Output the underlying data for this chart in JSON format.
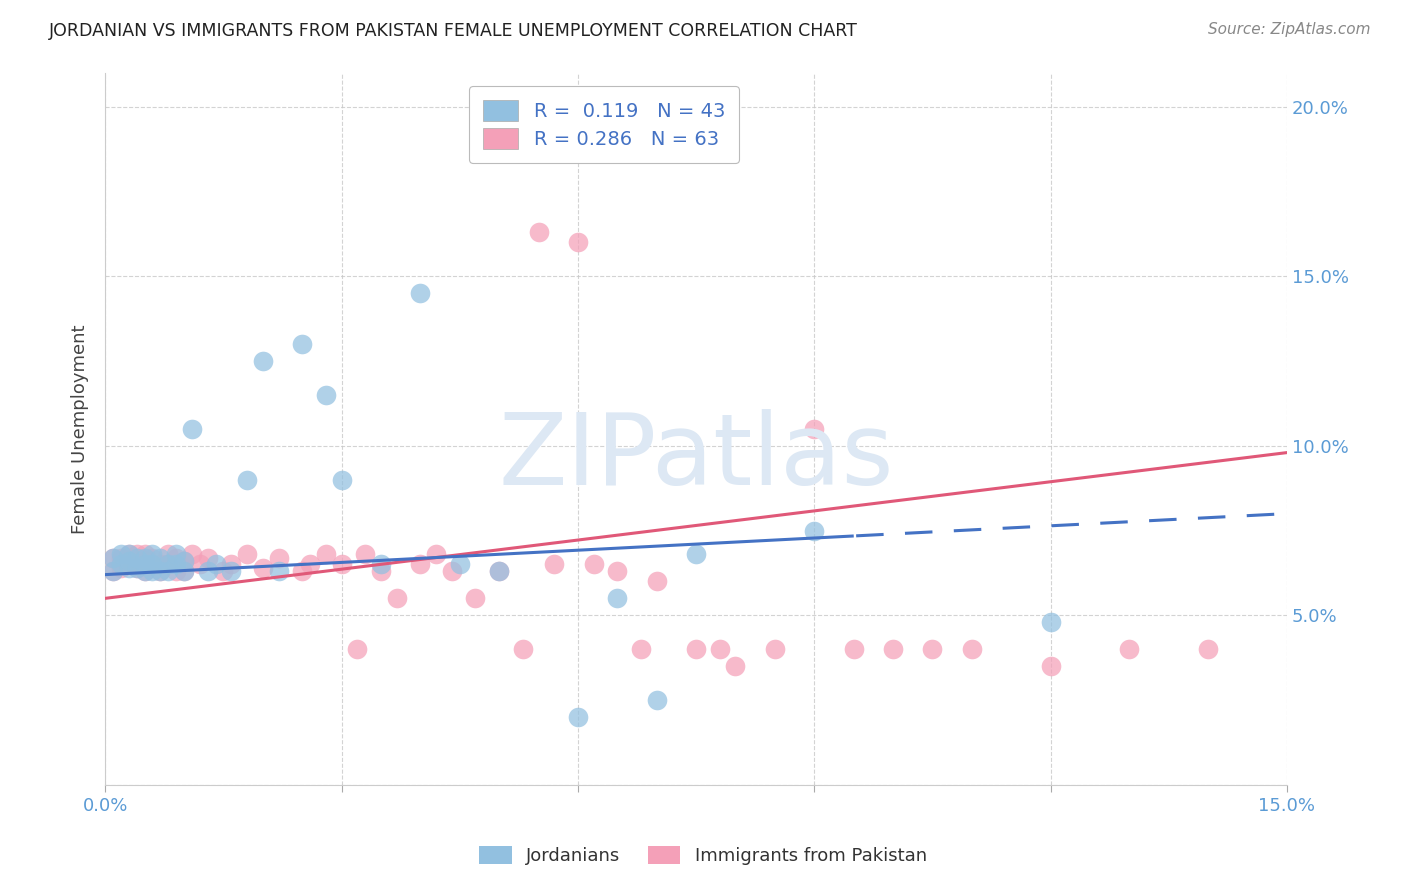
{
  "title": "JORDANIAN VS IMMIGRANTS FROM PAKISTAN FEMALE UNEMPLOYMENT CORRELATION CHART",
  "source": "Source: ZipAtlas.com",
  "ylabel": "Female Unemployment",
  "x_min": 0.0,
  "x_max": 0.15,
  "y_min": 0.0,
  "y_max": 0.21,
  "axis_color": "#5b9bd5",
  "grid_color": "#c8c8c8",
  "background_color": "#ffffff",
  "watermark_color": "#dde8f4",
  "jordanians_color": "#92c0e0",
  "pakistan_color": "#f4a0b8",
  "jordan_line_color": "#4472c4",
  "pakistan_line_color": "#e05878",
  "jordan_R": 0.119,
  "jordan_N": 43,
  "pakistan_R": 0.286,
  "pakistan_N": 63,
  "legend_label_jordan": "Jordanians",
  "legend_label_pakistan": "Immigrants from Pakistan",
  "jordan_solid_cutoff": 0.095,
  "jordan_line_y0": 0.062,
  "jordan_line_y1": 0.08,
  "pakistan_line_y0": 0.055,
  "pakistan_line_y1": 0.098,
  "jordan_x": [
    0.001,
    0.001,
    0.002,
    0.002,
    0.003,
    0.003,
    0.003,
    0.004,
    0.004,
    0.005,
    0.005,
    0.005,
    0.006,
    0.006,
    0.006,
    0.007,
    0.007,
    0.008,
    0.008,
    0.009,
    0.009,
    0.01,
    0.01,
    0.011,
    0.013,
    0.014,
    0.016,
    0.018,
    0.02,
    0.022,
    0.025,
    0.028,
    0.03,
    0.035,
    0.04,
    0.045,
    0.05,
    0.06,
    0.065,
    0.07,
    0.075,
    0.09,
    0.12
  ],
  "jordan_y": [
    0.063,
    0.067,
    0.065,
    0.068,
    0.064,
    0.066,
    0.068,
    0.064,
    0.067,
    0.063,
    0.065,
    0.067,
    0.063,
    0.065,
    0.068,
    0.063,
    0.067,
    0.063,
    0.065,
    0.065,
    0.068,
    0.063,
    0.066,
    0.105,
    0.063,
    0.065,
    0.063,
    0.09,
    0.125,
    0.063,
    0.13,
    0.115,
    0.09,
    0.065,
    0.145,
    0.065,
    0.063,
    0.02,
    0.055,
    0.025,
    0.068,
    0.075,
    0.048
  ],
  "pakistan_x": [
    0.001,
    0.001,
    0.002,
    0.002,
    0.003,
    0.003,
    0.003,
    0.004,
    0.004,
    0.005,
    0.005,
    0.005,
    0.006,
    0.006,
    0.007,
    0.007,
    0.008,
    0.008,
    0.009,
    0.009,
    0.01,
    0.01,
    0.011,
    0.012,
    0.013,
    0.015,
    0.016,
    0.018,
    0.02,
    0.022,
    0.025,
    0.026,
    0.028,
    0.03,
    0.032,
    0.033,
    0.035,
    0.037,
    0.04,
    0.042,
    0.044,
    0.047,
    0.05,
    0.053,
    0.055,
    0.057,
    0.06,
    0.062,
    0.065,
    0.068,
    0.07,
    0.075,
    0.078,
    0.08,
    0.085,
    0.09,
    0.095,
    0.1,
    0.105,
    0.11,
    0.12,
    0.13,
    0.14
  ],
  "pakistan_y": [
    0.063,
    0.067,
    0.064,
    0.067,
    0.065,
    0.068,
    0.066,
    0.064,
    0.068,
    0.063,
    0.066,
    0.068,
    0.065,
    0.067,
    0.063,
    0.065,
    0.068,
    0.065,
    0.063,
    0.067,
    0.063,
    0.066,
    0.068,
    0.065,
    0.067,
    0.063,
    0.065,
    0.068,
    0.064,
    0.067,
    0.063,
    0.065,
    0.068,
    0.065,
    0.04,
    0.068,
    0.063,
    0.055,
    0.065,
    0.068,
    0.063,
    0.055,
    0.063,
    0.04,
    0.163,
    0.065,
    0.16,
    0.065,
    0.063,
    0.04,
    0.06,
    0.04,
    0.04,
    0.035,
    0.04,
    0.105,
    0.04,
    0.04,
    0.04,
    0.04,
    0.035,
    0.04,
    0.04
  ]
}
